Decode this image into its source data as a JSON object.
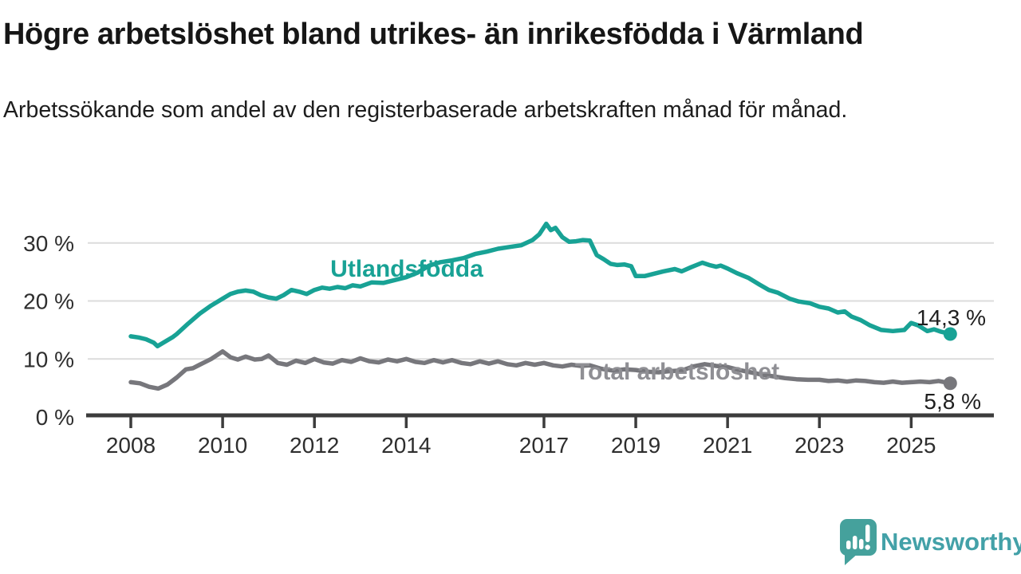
{
  "header": {
    "title": "Högre arbetslöshet bland utrikes- än inrikesfödda i Värmland",
    "subtitle": "Arbetssökande som andel av den registerbaserade arbetskraften månad för månad."
  },
  "branding": {
    "logo_text": "Newsworthy",
    "logo_icon": "bar-chart-speech-bubble-icon",
    "logo_icon_color": "#45a19c",
    "logo_text_color": "#43a1a8"
  },
  "chart_data": {
    "type": "line",
    "title": "Högre arbetslöshet bland utrikes- än inrikesfödda i Värmland",
    "subtitle": "Arbetssökande som andel av den registerbaserade arbetskraften månad för månad.",
    "unit": "%",
    "grid": "horizontal",
    "legend": "inline-labels",
    "x_axis": {
      "ticks": [
        {
          "year": 2008,
          "label": "2008"
        },
        {
          "year": 2010,
          "label": "2010"
        },
        {
          "year": 2012,
          "label": "2012"
        },
        {
          "year": 2014,
          "label": "2014"
        },
        {
          "year": 2017,
          "label": "2017"
        },
        {
          "year": 2019,
          "label": "2019"
        },
        {
          "year": 2021,
          "label": "2021"
        },
        {
          "year": 2023,
          "label": "2023"
        },
        {
          "year": 2025,
          "label": "2025"
        }
      ],
      "range": [
        2007.1,
        2026.8
      ]
    },
    "y_axis": {
      "ticks": [
        {
          "value": 0,
          "label": "0 %"
        },
        {
          "value": 10,
          "label": "10 %"
        },
        {
          "value": 20,
          "label": "20 %"
        },
        {
          "value": 30,
          "label": "30 %"
        }
      ],
      "range": [
        0,
        34
      ]
    },
    "series": [
      {
        "name": "Utlandsfödda",
        "color": "#18a295",
        "label_color": "#18a295",
        "end_label": "14,3 %",
        "end_value": 14.3,
        "points": [
          [
            2008.0,
            13.9
          ],
          [
            2008.17,
            13.7
          ],
          [
            2008.33,
            13.4
          ],
          [
            2008.5,
            12.8
          ],
          [
            2008.58,
            12.2
          ],
          [
            2008.75,
            13.0
          ],
          [
            2008.92,
            13.8
          ],
          [
            2009.0,
            14.3
          ],
          [
            2009.25,
            16.1
          ],
          [
            2009.5,
            17.8
          ],
          [
            2009.75,
            19.2
          ],
          [
            2010.0,
            20.4
          ],
          [
            2010.17,
            21.2
          ],
          [
            2010.33,
            21.6
          ],
          [
            2010.5,
            21.8
          ],
          [
            2010.67,
            21.6
          ],
          [
            2010.83,
            21.0
          ],
          [
            2011.0,
            20.6
          ],
          [
            2011.17,
            20.4
          ],
          [
            2011.33,
            21.0
          ],
          [
            2011.5,
            21.9
          ],
          [
            2011.67,
            21.6
          ],
          [
            2011.83,
            21.2
          ],
          [
            2012.0,
            21.9
          ],
          [
            2012.17,
            22.3
          ],
          [
            2012.33,
            22.1
          ],
          [
            2012.5,
            22.4
          ],
          [
            2012.67,
            22.2
          ],
          [
            2012.83,
            22.7
          ],
          [
            2013.0,
            22.5
          ],
          [
            2013.25,
            23.2
          ],
          [
            2013.5,
            23.1
          ],
          [
            2013.75,
            23.6
          ],
          [
            2014.0,
            24.1
          ],
          [
            2014.25,
            24.9
          ],
          [
            2014.5,
            26.1
          ],
          [
            2014.75,
            26.7
          ],
          [
            2015.0,
            27.0
          ],
          [
            2015.25,
            27.4
          ],
          [
            2015.5,
            28.1
          ],
          [
            2015.75,
            28.5
          ],
          [
            2016.0,
            29.0
          ],
          [
            2016.25,
            29.3
          ],
          [
            2016.5,
            29.6
          ],
          [
            2016.75,
            30.5
          ],
          [
            2016.9,
            31.5
          ],
          [
            2017.05,
            33.3
          ],
          [
            2017.15,
            32.2
          ],
          [
            2017.25,
            32.6
          ],
          [
            2017.4,
            31.0
          ],
          [
            2017.55,
            30.2
          ],
          [
            2017.7,
            30.3
          ],
          [
            2017.85,
            30.5
          ],
          [
            2018.0,
            30.4
          ],
          [
            2018.15,
            27.9
          ],
          [
            2018.3,
            27.2
          ],
          [
            2018.45,
            26.4
          ],
          [
            2018.6,
            26.2
          ],
          [
            2018.75,
            26.3
          ],
          [
            2018.9,
            26.0
          ],
          [
            2019.0,
            24.3
          ],
          [
            2019.2,
            24.3
          ],
          [
            2019.4,
            24.7
          ],
          [
            2019.6,
            25.1
          ],
          [
            2019.85,
            25.5
          ],
          [
            2020.0,
            25.1
          ],
          [
            2020.2,
            25.8
          ],
          [
            2020.45,
            26.6
          ],
          [
            2020.6,
            26.2
          ],
          [
            2020.75,
            25.9
          ],
          [
            2020.85,
            26.1
          ],
          [
            2021.0,
            25.6
          ],
          [
            2021.2,
            24.8
          ],
          [
            2021.45,
            24.0
          ],
          [
            2021.7,
            22.8
          ],
          [
            2021.9,
            21.9
          ],
          [
            2022.1,
            21.4
          ],
          [
            2022.35,
            20.4
          ],
          [
            2022.55,
            19.9
          ],
          [
            2022.8,
            19.6
          ],
          [
            2023.0,
            19.0
          ],
          [
            2023.2,
            18.7
          ],
          [
            2023.4,
            18.0
          ],
          [
            2023.55,
            18.2
          ],
          [
            2023.7,
            17.3
          ],
          [
            2023.9,
            16.7
          ],
          [
            2024.1,
            15.8
          ],
          [
            2024.35,
            15.0
          ],
          [
            2024.6,
            14.8
          ],
          [
            2024.85,
            15.0
          ],
          [
            2025.0,
            16.2
          ],
          [
            2025.15,
            15.8
          ],
          [
            2025.35,
            14.8
          ],
          [
            2025.5,
            15.1
          ],
          [
            2025.65,
            14.7
          ],
          [
            2025.85,
            14.3
          ]
        ]
      },
      {
        "name": "Total arbetslöshet",
        "color": "#77777c",
        "label_color": "#8f8f94",
        "end_label": "5,8 %",
        "end_value": 5.8,
        "points": [
          [
            2008.0,
            6.0
          ],
          [
            2008.2,
            5.8
          ],
          [
            2008.4,
            5.2
          ],
          [
            2008.6,
            4.9
          ],
          [
            2008.8,
            5.6
          ],
          [
            2009.0,
            6.8
          ],
          [
            2009.2,
            8.2
          ],
          [
            2009.35,
            8.4
          ],
          [
            2009.5,
            9.0
          ],
          [
            2009.75,
            10.0
          ],
          [
            2010.0,
            11.3
          ],
          [
            2010.17,
            10.3
          ],
          [
            2010.33,
            9.9
          ],
          [
            2010.5,
            10.4
          ],
          [
            2010.7,
            9.9
          ],
          [
            2010.85,
            10.0
          ],
          [
            2011.0,
            10.6
          ],
          [
            2011.2,
            9.3
          ],
          [
            2011.4,
            9.0
          ],
          [
            2011.6,
            9.7
          ],
          [
            2011.8,
            9.3
          ],
          [
            2012.0,
            10.0
          ],
          [
            2012.2,
            9.4
          ],
          [
            2012.4,
            9.2
          ],
          [
            2012.6,
            9.8
          ],
          [
            2012.8,
            9.5
          ],
          [
            2013.0,
            10.1
          ],
          [
            2013.2,
            9.6
          ],
          [
            2013.4,
            9.4
          ],
          [
            2013.6,
            9.9
          ],
          [
            2013.8,
            9.6
          ],
          [
            2014.0,
            10.0
          ],
          [
            2014.2,
            9.5
          ],
          [
            2014.4,
            9.3
          ],
          [
            2014.6,
            9.8
          ],
          [
            2014.8,
            9.4
          ],
          [
            2015.0,
            9.8
          ],
          [
            2015.2,
            9.3
          ],
          [
            2015.4,
            9.1
          ],
          [
            2015.6,
            9.6
          ],
          [
            2015.8,
            9.2
          ],
          [
            2016.0,
            9.6
          ],
          [
            2016.2,
            9.1
          ],
          [
            2016.4,
            8.9
          ],
          [
            2016.6,
            9.3
          ],
          [
            2016.8,
            9.0
          ],
          [
            2017.0,
            9.3
          ],
          [
            2017.2,
            8.9
          ],
          [
            2017.4,
            8.7
          ],
          [
            2017.6,
            9.0
          ],
          [
            2017.8,
            8.8
          ],
          [
            2018.0,
            8.9
          ],
          [
            2018.25,
            8.3
          ],
          [
            2018.5,
            8.0
          ],
          [
            2018.75,
            8.2
          ],
          [
            2019.0,
            8.1
          ],
          [
            2019.25,
            7.8
          ],
          [
            2019.5,
            7.7
          ],
          [
            2019.75,
            7.9
          ],
          [
            2020.0,
            8.0
          ],
          [
            2020.25,
            8.7
          ],
          [
            2020.5,
            9.1
          ],
          [
            2020.75,
            8.8
          ],
          [
            2021.0,
            8.6
          ],
          [
            2021.25,
            8.1
          ],
          [
            2021.5,
            7.7
          ],
          [
            2021.75,
            7.3
          ],
          [
            2022.0,
            7.0
          ],
          [
            2022.25,
            6.7
          ],
          [
            2022.5,
            6.5
          ],
          [
            2022.75,
            6.4
          ],
          [
            2023.0,
            6.4
          ],
          [
            2023.2,
            6.2
          ],
          [
            2023.4,
            6.3
          ],
          [
            2023.6,
            6.1
          ],
          [
            2023.8,
            6.3
          ],
          [
            2024.0,
            6.2
          ],
          [
            2024.2,
            6.0
          ],
          [
            2024.4,
            5.9
          ],
          [
            2024.6,
            6.1
          ],
          [
            2024.8,
            5.9
          ],
          [
            2025.0,
            6.0
          ],
          [
            2025.2,
            6.1
          ],
          [
            2025.4,
            6.0
          ],
          [
            2025.6,
            6.2
          ],
          [
            2025.85,
            5.8
          ]
        ]
      }
    ]
  }
}
